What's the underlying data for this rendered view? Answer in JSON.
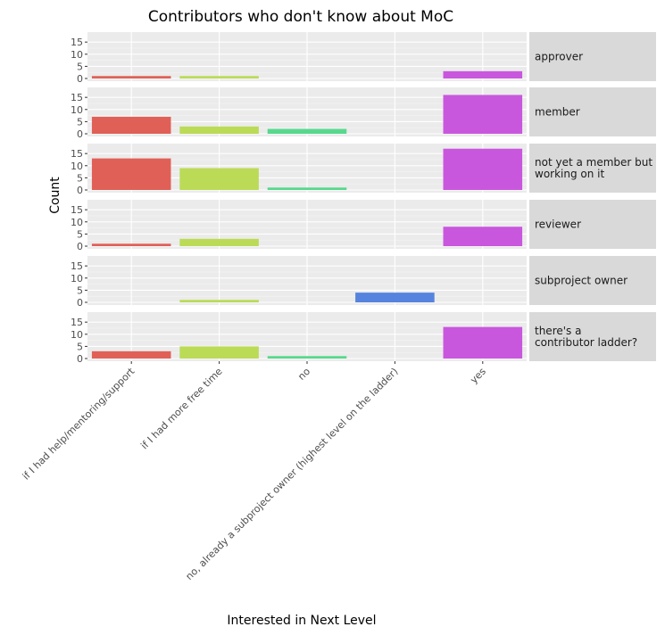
{
  "chart_data": {
    "type": "bar",
    "title": "Contributors who don't know about MoC",
    "xlabel": "Interested in Next Level",
    "ylabel": "Count",
    "categories": [
      "if I had help/mentoring/support",
      "if I had more free time",
      "no",
      "no, already a subproject owner (highest level on the ladder)",
      "yes"
    ],
    "colors": [
      "#e06058",
      "#bbdb57",
      "#57d88d",
      "#5583de",
      "#c957de"
    ],
    "ylim": [
      0,
      18
    ],
    "yticks": [
      0,
      5,
      10,
      15
    ],
    "grid": true,
    "facets": [
      {
        "label": [
          "approver"
        ],
        "values": [
          1,
          1,
          0,
          0,
          3
        ]
      },
      {
        "label": [
          "member"
        ],
        "values": [
          7,
          3,
          2,
          0,
          16
        ]
      },
      {
        "label": [
          "not yet a member but",
          "working on it"
        ],
        "values": [
          13,
          9,
          1,
          0,
          17
        ]
      },
      {
        "label": [
          "reviewer"
        ],
        "values": [
          1,
          3,
          0,
          0,
          8
        ]
      },
      {
        "label": [
          "subproject owner"
        ],
        "values": [
          0,
          1,
          0,
          4,
          0
        ]
      },
      {
        "label": [
          "there's a",
          "contributor ladder?"
        ],
        "values": [
          3,
          5,
          1,
          0,
          13
        ]
      }
    ]
  }
}
